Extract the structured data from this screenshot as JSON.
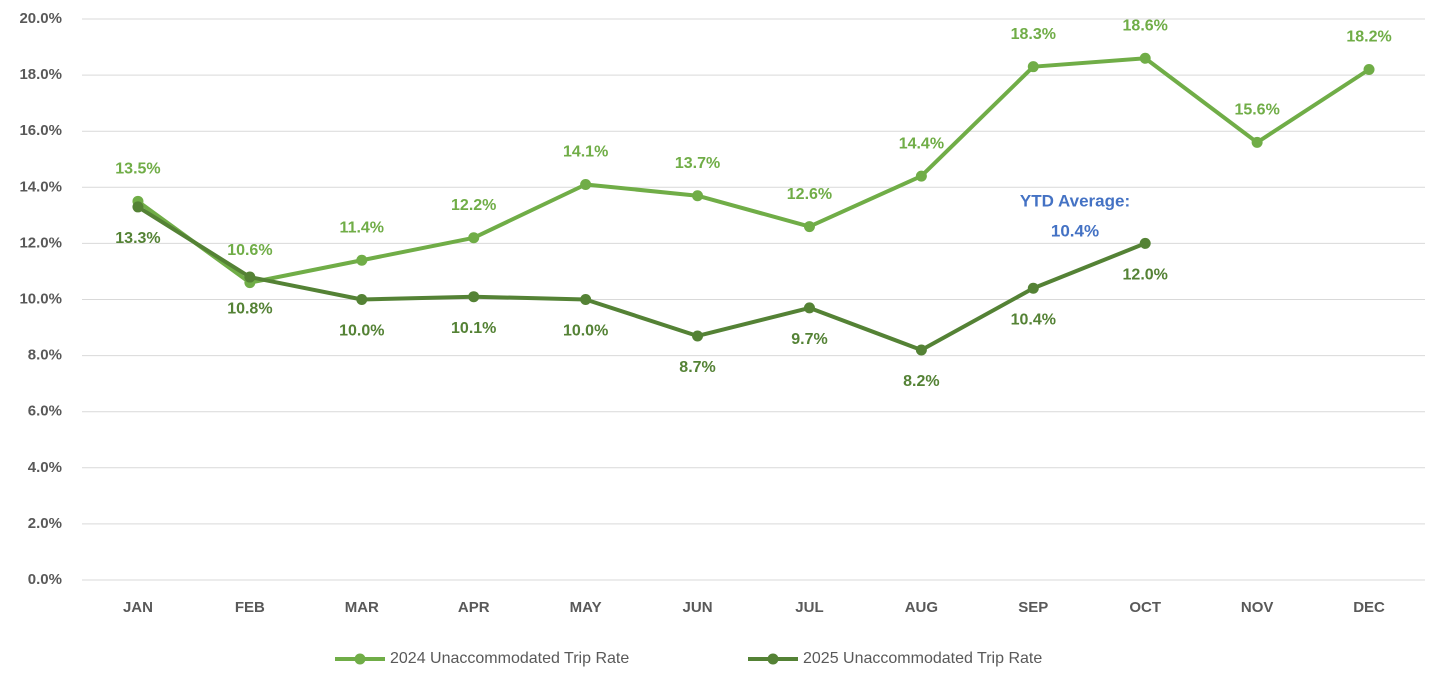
{
  "chart_data": {
    "type": "line",
    "categories": [
      "JAN",
      "FEB",
      "MAR",
      "APR",
      "MAY",
      "JUN",
      "JUL",
      "AUG",
      "SEP",
      "OCT",
      "NOV",
      "DEC"
    ],
    "series": [
      {
        "name": "2024 Unaccommodated Trip Rate",
        "color": "#70ad47",
        "values": [
          13.5,
          10.6,
          11.4,
          12.2,
          14.1,
          13.7,
          12.6,
          14.4,
          18.3,
          18.6,
          15.6,
          18.2
        ],
        "value_labels": [
          "13.5%",
          "10.6%",
          "11.4%",
          "12.2%",
          "14.1%",
          "13.7%",
          "12.6%",
          "14.4%",
          "18.3%",
          "18.6%",
          "15.6%",
          "18.2%"
        ]
      },
      {
        "name": "2025 Unaccommodated Trip Rate",
        "color": "#548235",
        "values": [
          13.3,
          10.8,
          10.0,
          10.1,
          10.0,
          8.7,
          9.7,
          8.2,
          10.4,
          12.0,
          null,
          null
        ],
        "value_labels": [
          "13.3%",
          "10.8%",
          "10.0%",
          "10.1%",
          "10.0%",
          "8.7%",
          "9.7%",
          "8.2%",
          "10.4%",
          "12.0%",
          null,
          null
        ]
      }
    ],
    "ylim": [
      0,
      20
    ],
    "yticks": [
      {
        "value": 0,
        "label": "0.0%"
      },
      {
        "value": 2,
        "label": "2.0%"
      },
      {
        "value": 4,
        "label": "4.0%"
      },
      {
        "value": 6,
        "label": "6.0%"
      },
      {
        "value": 8,
        "label": "8.0%"
      },
      {
        "value": 10,
        "label": "10.0%"
      },
      {
        "value": 12,
        "label": "12.0%"
      },
      {
        "value": 14,
        "label": "14.0%"
      },
      {
        "value": 16,
        "label": "16.0%"
      },
      {
        "value": 18,
        "label": "18.0%"
      },
      {
        "value": 20,
        "label": "20.0%"
      }
    ],
    "grid": true,
    "legend": "bottom",
    "annotation": {
      "lines": [
        "YTD Average:",
        "10.4%"
      ],
      "color": "#4472c4"
    }
  }
}
